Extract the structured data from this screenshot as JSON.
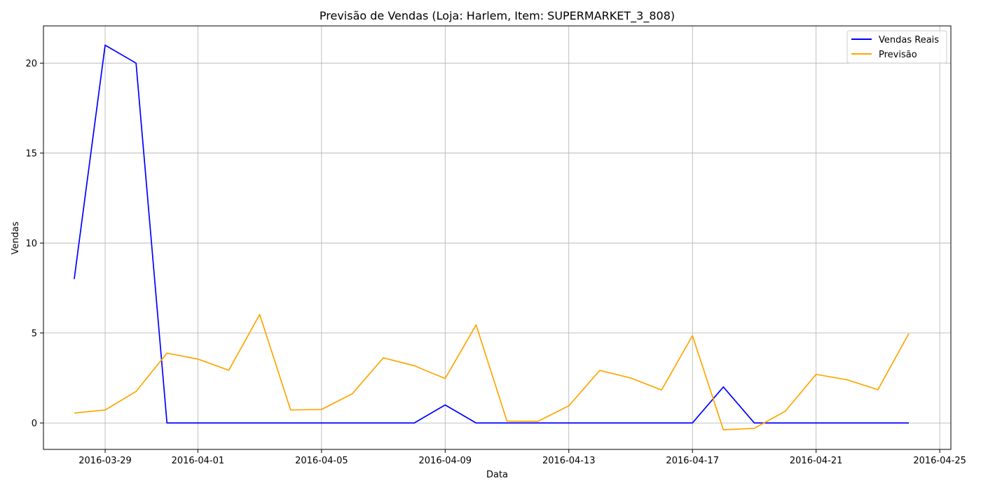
{
  "chart_data": {
    "type": "line",
    "title": "Previsão de Vendas (Loja: Harlem, Item: SUPERMARKET_3_808)",
    "xlabel": "Data",
    "ylabel": "Vendas",
    "x": [
      "2016-03-28",
      "2016-03-29",
      "2016-03-30",
      "2016-03-31",
      "2016-04-01",
      "2016-04-02",
      "2016-04-03",
      "2016-04-04",
      "2016-04-05",
      "2016-04-06",
      "2016-04-07",
      "2016-04-08",
      "2016-04-09",
      "2016-04-10",
      "2016-04-11",
      "2016-04-12",
      "2016-04-13",
      "2016-04-14",
      "2016-04-15",
      "2016-04-16",
      "2016-04-17",
      "2016-04-18",
      "2016-04-19",
      "2016-04-20",
      "2016-04-21",
      "2016-04-22",
      "2016-04-23",
      "2016-04-24"
    ],
    "series": [
      {
        "name": "Vendas Reais",
        "color": "#0000ff",
        "values": [
          8,
          21,
          20,
          0,
          0,
          0,
          0,
          0,
          0,
          0,
          0,
          0,
          1,
          0,
          0,
          0,
          0,
          0,
          0,
          0,
          0,
          2,
          0,
          0,
          0,
          0,
          0,
          0
        ]
      },
      {
        "name": "Previsão",
        "color": "#ffa500",
        "values": [
          0.55,
          0.72,
          1.75,
          3.88,
          3.55,
          2.93,
          6.03,
          0.72,
          0.75,
          1.63,
          3.62,
          3.18,
          2.47,
          5.45,
          0.1,
          0.09,
          0.95,
          2.92,
          2.5,
          1.83,
          4.85,
          -0.38,
          -0.3,
          0.65,
          2.7,
          2.4,
          1.85,
          4.97
        ]
      }
    ],
    "xticks": [
      "2016-03-29",
      "2016-04-01",
      "2016-04-05",
      "2016-04-09",
      "2016-04-13",
      "2016-04-17",
      "2016-04-21",
      "2016-04-25"
    ],
    "yticks": [
      0,
      5,
      10,
      15,
      20
    ],
    "xlim": [
      "2016-03-27T00:06",
      "2016-04-25T08:38"
    ],
    "ylim": [
      -1.47,
      22.07
    ],
    "grid": true,
    "legend": "top-right"
  }
}
